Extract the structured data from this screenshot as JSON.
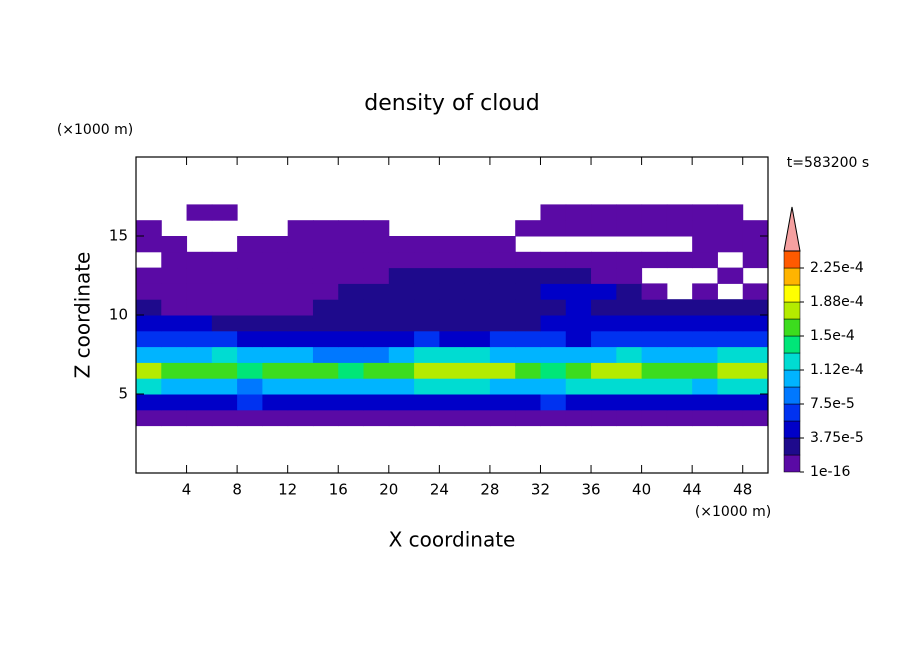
{
  "chart_data": {
    "type": "contour",
    "title": "density of cloud",
    "x_label": "X coordinate",
    "y_label": "Z coordinate",
    "x_unit": "(×1000 m)",
    "y_unit": "(×1000 m)",
    "time_label": "t=583200 s",
    "xlim": [
      0,
      50
    ],
    "ylim": [
      0,
      20
    ],
    "xticks": [
      4,
      8,
      12,
      16,
      20,
      24,
      28,
      32,
      36,
      40,
      44,
      48
    ],
    "yticks": [
      5,
      10,
      15
    ],
    "x": [
      1,
      3,
      5,
      7,
      9,
      11,
      13,
      15,
      17,
      19,
      21,
      23,
      25,
      27,
      29,
      31,
      33,
      35,
      37,
      39,
      41,
      43,
      45,
      47,
      49
    ],
    "y": [
      0.5,
      1.5,
      2.5,
      3.5,
      4.5,
      5.5,
      6.5,
      7.5,
      8.5,
      9.5,
      10.5,
      11.5,
      12.5,
      13.5,
      14.5,
      15.5,
      16.5,
      17.5,
      18.5,
      19.5
    ],
    "values": [
      [
        0,
        0,
        0,
        0,
        0,
        0,
        0,
        0,
        0,
        0,
        0,
        0,
        0,
        0,
        0,
        0,
        0,
        0,
        0,
        0,
        0,
        0,
        0,
        0,
        0
      ],
      [
        0,
        0,
        0,
        0,
        0,
        0,
        0,
        0,
        0,
        0,
        0,
        0,
        0,
        0,
        0,
        0,
        0,
        0,
        0,
        0,
        0,
        0,
        0,
        0,
        0
      ],
      [
        0,
        0,
        0,
        0,
        0,
        0,
        0,
        0,
        0,
        0,
        0,
        0,
        0,
        0,
        0,
        0,
        0,
        0,
        0,
        0,
        0,
        0,
        0,
        0,
        0
      ],
      [
        1e-05,
        1e-05,
        1e-05,
        1e-05,
        1e-05,
        1e-05,
        1e-05,
        1e-05,
        1e-05,
        1e-05,
        1e-05,
        1e-05,
        1e-05,
        1e-05,
        1e-05,
        1e-05,
        1e-05,
        1e-05,
        1e-05,
        1e-05,
        1e-05,
        1e-05,
        1e-05,
        1e-05,
        1e-05
      ],
      [
        4e-05,
        4e-05,
        4e-05,
        4e-05,
        6e-05,
        4e-05,
        4e-05,
        4e-05,
        4e-05,
        4e-05,
        4e-05,
        4e-05,
        4e-05,
        4e-05,
        4e-05,
        4e-05,
        6e-05,
        4e-05,
        4e-05,
        4e-05,
        4e-05,
        4e-05,
        4e-05,
        4e-05,
        4e-05
      ],
      [
        0.00012,
        0.00011,
        0.0001,
        0.00011,
        9e-05,
        0.0001,
        0.00011,
        0.00011,
        0.0001,
        0.00011,
        0.00011,
        0.00012,
        0.00012,
        0.00012,
        0.00011,
        0.0001,
        0.0001,
        0.00012,
        0.00013,
        0.00013,
        0.00012,
        0.00012,
        0.00011,
        0.00012,
        0.00013
      ],
      [
        0.00017,
        0.00016,
        0.00015,
        0.00016,
        0.00014,
        0.00015,
        0.00015,
        0.00015,
        0.00014,
        0.00015,
        0.00016,
        0.00017,
        0.00018,
        0.00018,
        0.00017,
        0.00015,
        0.00014,
        0.00016,
        0.00017,
        0.00017,
        0.00016,
        0.00016,
        0.00015,
        0.00017,
        0.00017
      ],
      [
        0.0001,
        0.00011,
        0.0001,
        0.00012,
        0.00011,
        0.0001,
        0.0001,
        9e-05,
        8e-05,
        9e-05,
        0.0001,
        0.00012,
        0.00013,
        0.00012,
        0.00011,
        0.0001,
        0.00011,
        0.0001,
        0.00011,
        0.00012,
        0.00011,
        0.00011,
        0.00011,
        0.00012,
        0.00012
      ],
      [
        6e-05,
        7e-05,
        6e-05,
        6e-05,
        5e-05,
        5e-05,
        4e-05,
        4e-05,
        4e-05,
        5e-05,
        5e-05,
        6e-05,
        5e-05,
        5e-05,
        6e-05,
        6e-05,
        6e-05,
        5e-05,
        6e-05,
        7e-05,
        6e-05,
        6e-05,
        6e-05,
        6e-05,
        6e-05
      ],
      [
        5e-05,
        4e-05,
        4e-05,
        3e-05,
        3e-05,
        3e-05,
        3e-05,
        3e-05,
        3e-05,
        3e-05,
        3e-05,
        3e-05,
        3e-05,
        3e-05,
        3e-05,
        3e-05,
        4e-05,
        4e-05,
        4e-05,
        4e-05,
        4e-05,
        4e-05,
        4e-05,
        4e-05,
        4e-05
      ],
      [
        2e-05,
        1e-05,
        1e-05,
        1e-05,
        1e-05,
        1e-05,
        1e-05,
        2e-05,
        2e-05,
        3e-05,
        3e-05,
        3e-05,
        3e-05,
        2e-05,
        2e-05,
        2e-05,
        3e-05,
        4e-05,
        3e-05,
        3e-05,
        2e-05,
        2e-05,
        2e-05,
        2e-05,
        2e-05
      ],
      [
        1e-05,
        1e-05,
        1e-05,
        1e-05,
        1e-05,
        1e-05,
        1e-05,
        1e-05,
        2e-05,
        2e-05,
        2e-05,
        2e-05,
        2e-05,
        2e-05,
        2e-05,
        2e-05,
        5e-05,
        4e-05,
        5e-05,
        2e-05,
        1e-05,
        0,
        1e-05,
        0,
        1e-05
      ],
      [
        1e-05,
        1e-05,
        1e-05,
        1e-05,
        1e-05,
        1e-05,
        1e-05,
        1e-05,
        1e-05,
        1e-05,
        2e-05,
        2e-05,
        2e-05,
        2e-05,
        2e-05,
        2e-05,
        2e-05,
        2e-05,
        1e-05,
        1e-05,
        0,
        0,
        0,
        1e-05,
        0
      ],
      [
        0,
        1e-05,
        1e-05,
        1e-05,
        1e-05,
        1e-05,
        1e-05,
        1e-05,
        1e-05,
        1e-05,
        1e-05,
        1e-05,
        1e-05,
        1e-05,
        1e-05,
        1e-05,
        1e-05,
        1e-05,
        1e-05,
        1e-05,
        1e-05,
        1e-05,
        1e-05,
        0,
        1e-05
      ],
      [
        1e-05,
        1e-05,
        0,
        0,
        1e-05,
        1e-05,
        1e-05,
        1e-05,
        1e-05,
        1e-05,
        1e-05,
        1e-05,
        1e-05,
        1e-05,
        1e-05,
        0,
        0,
        0,
        0,
        0,
        0,
        0,
        1e-05,
        1e-05,
        1e-05
      ],
      [
        1e-05,
        0,
        0,
        0,
        0,
        0,
        1e-05,
        1e-05,
        1e-05,
        1e-05,
        0,
        0,
        0,
        0,
        0,
        1e-05,
        1e-05,
        1e-05,
        1e-05,
        1e-05,
        1e-05,
        1e-05,
        1e-05,
        1e-05,
        1e-05
      ],
      [
        0,
        0,
        1e-05,
        1e-05,
        0,
        0,
        0,
        0,
        0,
        0,
        0,
        0,
        0,
        0,
        0,
        0,
        1e-05,
        1e-05,
        1e-05,
        1e-05,
        1e-05,
        1e-05,
        1e-05,
        1e-05,
        0
      ],
      [
        0,
        0,
        0,
        0,
        0,
        0,
        0,
        0,
        0,
        0,
        0,
        0,
        0,
        0,
        0,
        0,
        0,
        0,
        0,
        0,
        0,
        0,
        0,
        0,
        0
      ],
      [
        0,
        0,
        0,
        0,
        0,
        0,
        0,
        0,
        0,
        0,
        0,
        0,
        0,
        0,
        0,
        0,
        0,
        0,
        0,
        0,
        0,
        0,
        0,
        0,
        0
      ],
      [
        0,
        0,
        0,
        0,
        0,
        0,
        0,
        0,
        0,
        0,
        0,
        0,
        0,
        0,
        0,
        0,
        0,
        0,
        0,
        0,
        0,
        0,
        0,
        0,
        0
      ]
    ],
    "levels": [
      1e-16,
      1.875e-05,
      3.75e-05,
      5.625e-05,
      7.5e-05,
      9.375e-05,
      0.0001125,
      0.00013125,
      0.00015,
      0.00016875,
      0.0001875,
      0.00020625,
      0.000225,
      0.00024375
    ],
    "colors": [
      "#5a0aa5",
      "#1e0a8c",
      "#0000c8",
      "#0032f0",
      "#0078ff",
      "#00b4ff",
      "#00dcd2",
      "#00e678",
      "#3cdc1e",
      "#b4eb00",
      "#ffff00",
      "#ffb400",
      "#ff5a00"
    ],
    "over_color": "#f5a0a0",
    "cticks": [
      {
        "value": 1e-16,
        "label": "1e-16"
      },
      {
        "value": 3.75e-05,
        "label": "3.75e-5"
      },
      {
        "value": 7.5e-05,
        "label": "7.5e-5"
      },
      {
        "value": 0.0001125,
        "label": "1.12e-4"
      },
      {
        "value": 0.00015,
        "label": "1.5e-4"
      },
      {
        "value": 0.0001875,
        "label": "1.88e-4"
      },
      {
        "value": 0.000225,
        "label": "2.25e-4"
      }
    ]
  }
}
